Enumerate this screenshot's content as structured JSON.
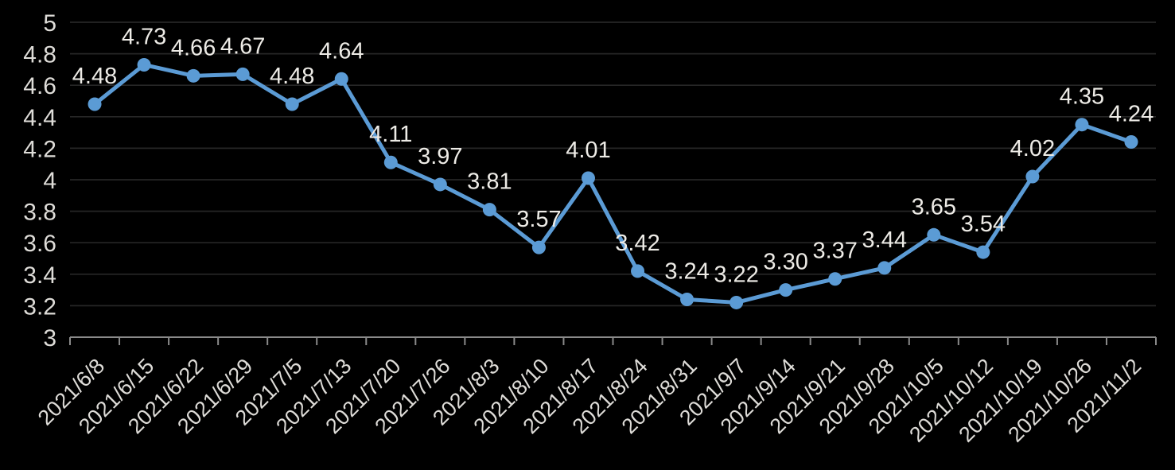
{
  "chart_data": {
    "type": "line",
    "title": "",
    "xlabel": "",
    "ylabel": "",
    "categories": [
      "2021/6/8",
      "2021/6/15",
      "2021/6/22",
      "2021/6/29",
      "2021/7/5",
      "2021/7/13",
      "2021/7/20",
      "2021/7/26",
      "2021/8/3",
      "2021/8/10",
      "2021/8/17",
      "2021/8/24",
      "2021/8/31",
      "2021/9/7",
      "2021/9/14",
      "2021/9/21",
      "2021/9/28",
      "2021/10/5",
      "2021/10/12",
      "2021/10/19",
      "2021/10/26",
      "2021/11/2"
    ],
    "series": [
      {
        "name": "",
        "values": [
          4.48,
          4.73,
          4.66,
          4.67,
          4.48,
          4.64,
          4.11,
          3.97,
          3.81,
          3.57,
          4.01,
          3.42,
          3.24,
          3.22,
          3.3,
          3.37,
          3.44,
          3.65,
          3.54,
          4.02,
          4.35,
          4.24
        ],
        "data_labels": [
          "4.48",
          "4.73",
          "4.66",
          "4.67",
          "4.48",
          "4.64",
          "4.11",
          "3.97",
          "3.81",
          "3.57",
          "4.01",
          "3.42",
          "3.24",
          "3.22",
          "3.30",
          "3.37",
          "3.44",
          "3.65",
          "3.54",
          "4.02",
          "4.35",
          "4.24"
        ]
      }
    ],
    "ylim": [
      3,
      5
    ],
    "y_ticks": [
      "3",
      "3.2",
      "3.4",
      "3.6",
      "3.8",
      "4",
      "4.2",
      "4.4",
      "4.6",
      "4.8",
      "5"
    ],
    "grid": true,
    "legend": "none",
    "x_label_rotation_deg": 45,
    "colors": {
      "background": "#000000",
      "line": "#5B9BD5",
      "marker": "#5B9BD5",
      "grid": "#262626",
      "axis": "#8A8A8A",
      "axis_text": "#DEDCD8",
      "data_label_text": "#EDEBE6"
    }
  }
}
